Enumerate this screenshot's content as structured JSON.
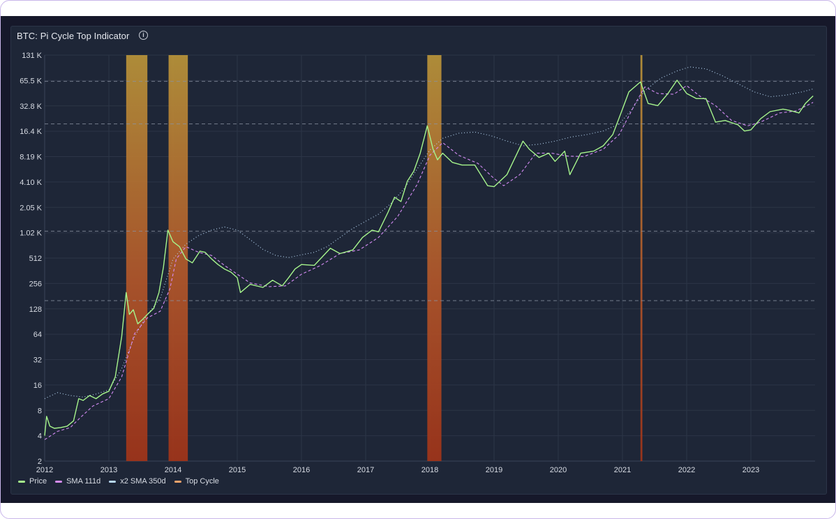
{
  "title": "BTC: Pi Cycle Top Indicator",
  "info_symbol": "i",
  "colors": {
    "price": "#a6f58c",
    "sma111": "#d58cf5",
    "sma350": "#b8d8f5",
    "topcycle": "#f5a36b",
    "grid": "#2c3547",
    "axis_text": "#d7dbe3"
  },
  "legend": [
    {
      "label": "Price",
      "color": "#a6f58c"
    },
    {
      "label": "SMA 111d",
      "color": "#d58cf5"
    },
    {
      "label": "x2 SMA 350d",
      "color": "#b8d8f5"
    },
    {
      "label": "Top Cycle",
      "color": "#f5a36b"
    }
  ],
  "chart_data": {
    "type": "line",
    "title": "BTC: Pi Cycle Top Indicator",
    "y_scale": "log2",
    "ylim": [
      2,
      131072
    ],
    "xlim": [
      2012.0,
      2024.0
    ],
    "y_ticks": [
      {
        "value": 2,
        "label": "2"
      },
      {
        "value": 4,
        "label": "4"
      },
      {
        "value": 8,
        "label": "8"
      },
      {
        "value": 16,
        "label": "16"
      },
      {
        "value": 32,
        "label": "32"
      },
      {
        "value": 64,
        "label": "64"
      },
      {
        "value": 128,
        "label": "128"
      },
      {
        "value": 256,
        "label": "256"
      },
      {
        "value": 512,
        "label": "512"
      },
      {
        "value": 1024,
        "label": "1.02 K"
      },
      {
        "value": 2048,
        "label": "2.05 K"
      },
      {
        "value": 4096,
        "label": "4.10 K"
      },
      {
        "value": 8192,
        "label": "8.19 K"
      },
      {
        "value": 16384,
        "label": "16.4 K"
      },
      {
        "value": 32768,
        "label": "32.8 K"
      },
      {
        "value": 65536,
        "label": "65.5 K"
      },
      {
        "value": 131072,
        "label": "131 K"
      }
    ],
    "x_ticks": [
      {
        "value": 2012,
        "label": "2012"
      },
      {
        "value": 2013,
        "label": "2013"
      },
      {
        "value": 2014,
        "label": "2014"
      },
      {
        "value": 2015,
        "label": "2015"
      },
      {
        "value": 2016,
        "label": "2016"
      },
      {
        "value": 2017,
        "label": "2017"
      },
      {
        "value": 2018,
        "label": "2018"
      },
      {
        "value": 2019,
        "label": "2019"
      },
      {
        "value": 2020,
        "label": "2020"
      },
      {
        "value": 2021,
        "label": "2021"
      },
      {
        "value": 2022,
        "label": "2022"
      },
      {
        "value": 2023,
        "label": "2023"
      }
    ],
    "reference_lines": [
      160,
      1070,
      20000,
      64000
    ],
    "top_cycle_periods": [
      [
        2013.27,
        2013.6
      ],
      [
        2013.93,
        2014.23
      ],
      [
        2017.96,
        2018.18
      ],
      [
        2021.28,
        2021.31
      ]
    ],
    "series": [
      {
        "name": "Price",
        "style": "solid",
        "points": [
          [
            2012.0,
            4.0
          ],
          [
            2012.03,
            6.8
          ],
          [
            2012.08,
            5.2
          ],
          [
            2012.15,
            4.9
          ],
          [
            2012.25,
            5.0
          ],
          [
            2012.35,
            5.2
          ],
          [
            2012.45,
            6.0
          ],
          [
            2012.53,
            11.0
          ],
          [
            2012.6,
            10.5
          ],
          [
            2012.7,
            12.0
          ],
          [
            2012.8,
            11.0
          ],
          [
            2012.9,
            12.5
          ],
          [
            2013.0,
            13.5
          ],
          [
            2013.1,
            20.0
          ],
          [
            2013.2,
            60.0
          ],
          [
            2013.27,
            200.0
          ],
          [
            2013.32,
            110.0
          ],
          [
            2013.38,
            125.0
          ],
          [
            2013.45,
            85.0
          ],
          [
            2013.52,
            95.0
          ],
          [
            2013.6,
            110.0
          ],
          [
            2013.7,
            130.0
          ],
          [
            2013.78,
            200.0
          ],
          [
            2013.85,
            400.0
          ],
          [
            2013.92,
            1100.0
          ],
          [
            2014.0,
            800.0
          ],
          [
            2014.1,
            700.0
          ],
          [
            2014.2,
            500.0
          ],
          [
            2014.3,
            450.0
          ],
          [
            2014.42,
            620.0
          ],
          [
            2014.5,
            600.0
          ],
          [
            2014.6,
            500.0
          ],
          [
            2014.7,
            430.0
          ],
          [
            2014.8,
            380.0
          ],
          [
            2014.9,
            350.0
          ],
          [
            2015.0,
            300.0
          ],
          [
            2015.05,
            200.0
          ],
          [
            2015.2,
            250.0
          ],
          [
            2015.4,
            230.0
          ],
          [
            2015.55,
            280.0
          ],
          [
            2015.7,
            240.0
          ],
          [
            2015.8,
            300.0
          ],
          [
            2015.9,
            380.0
          ],
          [
            2016.0,
            430.0
          ],
          [
            2016.2,
            420.0
          ],
          [
            2016.45,
            670.0
          ],
          [
            2016.6,
            580.0
          ],
          [
            2016.8,
            640.0
          ],
          [
            2016.95,
            900.0
          ],
          [
            2017.1,
            1100.0
          ],
          [
            2017.2,
            1050.0
          ],
          [
            2017.35,
            1800.0
          ],
          [
            2017.45,
            2700.0
          ],
          [
            2017.55,
            2400.0
          ],
          [
            2017.65,
            4200.0
          ],
          [
            2017.75,
            5500.0
          ],
          [
            2017.85,
            9000.0
          ],
          [
            2017.96,
            19000.0
          ],
          [
            2018.05,
            10000.0
          ],
          [
            2018.12,
            7500.0
          ],
          [
            2018.2,
            9000.0
          ],
          [
            2018.35,
            7000.0
          ],
          [
            2018.5,
            6500.0
          ],
          [
            2018.7,
            6500.0
          ],
          [
            2018.9,
            3700.0
          ],
          [
            2019.0,
            3600.0
          ],
          [
            2019.2,
            5000.0
          ],
          [
            2019.45,
            12500.0
          ],
          [
            2019.55,
            10000.0
          ],
          [
            2019.7,
            8000.0
          ],
          [
            2019.85,
            9000.0
          ],
          [
            2019.95,
            7200.0
          ],
          [
            2020.1,
            9500.0
          ],
          [
            2020.18,
            5000.0
          ],
          [
            2020.35,
            9000.0
          ],
          [
            2020.55,
            9500.0
          ],
          [
            2020.7,
            11000.0
          ],
          [
            2020.85,
            15000.0
          ],
          [
            2021.0,
            30000.0
          ],
          [
            2021.1,
            48000.0
          ],
          [
            2021.28,
            63000.0
          ],
          [
            2021.4,
            35000.0
          ],
          [
            2021.55,
            33000.0
          ],
          [
            2021.7,
            45000.0
          ],
          [
            2021.85,
            66000.0
          ],
          [
            2022.0,
            46000.0
          ],
          [
            2022.15,
            40000.0
          ],
          [
            2022.3,
            40000.0
          ],
          [
            2022.45,
            21000.0
          ],
          [
            2022.6,
            22000.0
          ],
          [
            2022.8,
            19500.0
          ],
          [
            2022.9,
            16500.0
          ],
          [
            2023.0,
            17000.0
          ],
          [
            2023.15,
            23000.0
          ],
          [
            2023.3,
            28000.0
          ],
          [
            2023.5,
            30000.0
          ],
          [
            2023.6,
            29000.0
          ],
          [
            2023.75,
            27000.0
          ],
          [
            2023.85,
            35000.0
          ],
          [
            2023.97,
            43000.0
          ]
        ]
      },
      {
        "name": "SMA 111d",
        "style": "dashed",
        "points": [
          [
            2012.0,
            3.6
          ],
          [
            2012.2,
            4.5
          ],
          [
            2012.4,
            5.0
          ],
          [
            2012.55,
            6.5
          ],
          [
            2012.75,
            9.0
          ],
          [
            2013.0,
            11.0
          ],
          [
            2013.2,
            20.0
          ],
          [
            2013.4,
            65.0
          ],
          [
            2013.6,
            100.0
          ],
          [
            2013.8,
            120.0
          ],
          [
            2013.95,
            220.0
          ],
          [
            2014.05,
            500.0
          ],
          [
            2014.2,
            700.0
          ],
          [
            2014.4,
            600.0
          ],
          [
            2014.6,
            550.0
          ],
          [
            2014.8,
            420.0
          ],
          [
            2015.0,
            330.0
          ],
          [
            2015.2,
            260.0
          ],
          [
            2015.5,
            235.0
          ],
          [
            2015.75,
            240.0
          ],
          [
            2016.0,
            330.0
          ],
          [
            2016.3,
            420.0
          ],
          [
            2016.6,
            580.0
          ],
          [
            2016.9,
            640.0
          ],
          [
            2017.2,
            900.0
          ],
          [
            2017.5,
            1600.0
          ],
          [
            2017.8,
            3800.0
          ],
          [
            2018.0,
            8500.0
          ],
          [
            2018.2,
            12000.0
          ],
          [
            2018.45,
            8500.0
          ],
          [
            2018.75,
            6800.0
          ],
          [
            2019.0,
            4500.0
          ],
          [
            2019.15,
            3700.0
          ],
          [
            2019.4,
            5000.0
          ],
          [
            2019.65,
            9000.0
          ],
          [
            2019.9,
            9000.0
          ],
          [
            2020.15,
            8300.0
          ],
          [
            2020.4,
            8200.0
          ],
          [
            2020.7,
            10000.0
          ],
          [
            2020.95,
            15000.0
          ],
          [
            2021.2,
            35000.0
          ],
          [
            2021.35,
            55000.0
          ],
          [
            2021.55,
            46000.0
          ],
          [
            2021.8,
            45000.0
          ],
          [
            2022.0,
            57000.0
          ],
          [
            2022.2,
            43000.0
          ],
          [
            2022.45,
            33000.0
          ],
          [
            2022.7,
            22000.0
          ],
          [
            2022.95,
            19000.0
          ],
          [
            2023.15,
            21000.0
          ],
          [
            2023.45,
            27000.0
          ],
          [
            2023.7,
            28500.0
          ],
          [
            2023.97,
            36000.0
          ]
        ]
      },
      {
        "name": "x2 SMA 350d",
        "style": "dotted",
        "points": [
          [
            2012.0,
            11.0
          ],
          [
            2012.2,
            13.0
          ],
          [
            2012.4,
            12.0
          ],
          [
            2012.6,
            11.5
          ],
          [
            2012.8,
            12.5
          ],
          [
            2013.0,
            14.0
          ],
          [
            2013.2,
            25.0
          ],
          [
            2013.4,
            60.0
          ],
          [
            2013.6,
            110.0
          ],
          [
            2013.8,
            170.0
          ],
          [
            2014.0,
            500.0
          ],
          [
            2014.2,
            750.0
          ],
          [
            2014.4,
            950.0
          ],
          [
            2014.6,
            1100.0
          ],
          [
            2014.8,
            1200.0
          ],
          [
            2015.0,
            1100.0
          ],
          [
            2015.2,
            850.0
          ],
          [
            2015.4,
            650.0
          ],
          [
            2015.6,
            550.0
          ],
          [
            2015.8,
            520.0
          ],
          [
            2016.0,
            560.0
          ],
          [
            2016.2,
            600.0
          ],
          [
            2016.4,
            700.0
          ],
          [
            2016.6,
            900.0
          ],
          [
            2016.8,
            1150.0
          ],
          [
            2017.0,
            1400.0
          ],
          [
            2017.2,
            1700.0
          ],
          [
            2017.4,
            2300.0
          ],
          [
            2017.6,
            3400.0
          ],
          [
            2017.8,
            5800.0
          ],
          [
            2018.0,
            9800.0
          ],
          [
            2018.2,
            13500.0
          ],
          [
            2018.45,
            15500.0
          ],
          [
            2018.7,
            16000.0
          ],
          [
            2018.95,
            14500.0
          ],
          [
            2019.2,
            12500.0
          ],
          [
            2019.45,
            11000.0
          ],
          [
            2019.7,
            11500.0
          ],
          [
            2019.95,
            12500.0
          ],
          [
            2020.2,
            14000.0
          ],
          [
            2020.45,
            15000.0
          ],
          [
            2020.7,
            16500.0
          ],
          [
            2020.95,
            20000.0
          ],
          [
            2021.15,
            30000.0
          ],
          [
            2021.35,
            50000.0
          ],
          [
            2021.6,
            70000.0
          ],
          [
            2021.85,
            85000.0
          ],
          [
            2022.05,
            95000.0
          ],
          [
            2022.3,
            90000.0
          ],
          [
            2022.55,
            75000.0
          ],
          [
            2022.8,
            60000.0
          ],
          [
            2023.05,
            48000.0
          ],
          [
            2023.3,
            42000.0
          ],
          [
            2023.55,
            44000.0
          ],
          [
            2023.8,
            48000.0
          ],
          [
            2023.97,
            52000.0
          ]
        ]
      }
    ]
  }
}
